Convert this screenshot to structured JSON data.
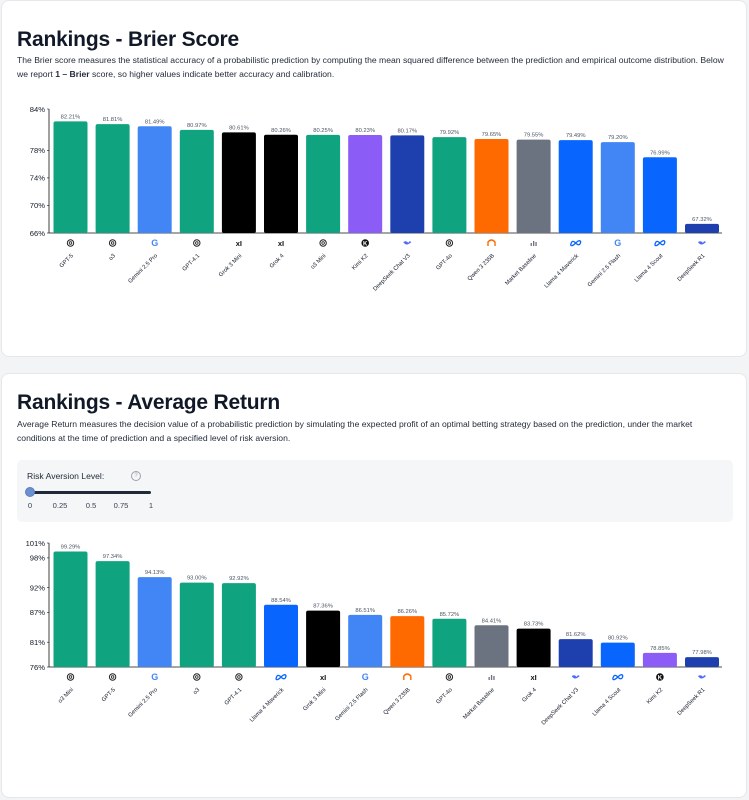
{
  "brier": {
    "title": "Rankings - Brier Score",
    "description_part1": "The Brier score measures the statistical accuracy of a probabilistic prediction by computing the mean squared difference between the prediction and empirical outcome distribution. Below we report ",
    "description_bold": "1 – Brier",
    "description_part2": " score, so higher values indicate better accuracy and calibration."
  },
  "avg_return": {
    "title": "Rankings - Average Return",
    "description": "Average Return measures the decision value of a probabilistic prediction by simulating the expected profit of an optimal betting strategy based on the prediction, under the market conditions at the time of prediction and a specified level of risk aversion.",
    "risk_label": "Risk Aversion Level:",
    "risk_info_icon": "?",
    "risk_value": 0,
    "risk_ticks": [
      "0",
      "0.25",
      "0.5",
      "0.75",
      "1"
    ]
  },
  "colors": {
    "openai": "#10a37f",
    "google": "#4285f4",
    "xai": "#000000",
    "kimi": "#8b5cf6",
    "deepseek": "#1e40af",
    "qwen": "#ff6a00",
    "baseline": "#6b7280",
    "meta": "#0866ff"
  },
  "chart_data": [
    {
      "type": "bar",
      "title": "",
      "ylabel": "",
      "xlabel": "",
      "ylim": [
        66,
        84
      ],
      "yticks": [
        "84%",
        "78%",
        "74%",
        "70%",
        "66%"
      ],
      "ytick_values": [
        84,
        78,
        74,
        70,
        66
      ],
      "categories": [
        "GPT-5",
        "o3",
        "Gemini 2.5 Pro",
        "GPT-4.1",
        "Grok 3 Mini",
        "Grok 4",
        "o3 Mini",
        "Kimi K2",
        "DeepSeek Chat V3",
        "GPT-4o",
        "Qwen 3 235B",
        "Market Baseline",
        "Llama 4 Maverick",
        "Gemini 2.5 Flash",
        "Llama 4 Scout",
        "DeepSeek R1"
      ],
      "values": [
        82.21,
        81.81,
        81.49,
        80.97,
        80.61,
        80.26,
        80.25,
        80.23,
        80.17,
        79.92,
        79.65,
        79.55,
        79.49,
        79.2,
        76.99,
        67.32
      ],
      "labels": [
        "82.21%",
        "81.81%",
        "81.49%",
        "80.97%",
        "80.61%",
        "80.26%",
        "80.25%",
        "80.23%",
        "80.17%",
        "79.92%",
        "79.65%",
        "79.55%",
        "79.49%",
        "79.20%",
        "76.99%",
        "67.32%"
      ],
      "providers": [
        "openai",
        "openai",
        "google",
        "openai",
        "xai",
        "xai",
        "openai",
        "kimi",
        "deepseek",
        "openai",
        "qwen",
        "baseline",
        "meta",
        "google",
        "meta",
        "deepseek"
      ],
      "grid": false,
      "legend": "none"
    },
    {
      "type": "bar",
      "title": "",
      "ylabel": "",
      "xlabel": "",
      "ylim": [
        76,
        101
      ],
      "yticks": [
        "101%",
        "98%",
        "92%",
        "87%",
        "81%",
        "76%"
      ],
      "ytick_values": [
        101,
        98,
        92,
        87,
        81,
        76
      ],
      "categories": [
        "o3 Mini",
        "GPT-5",
        "Gemini 2.5 Pro",
        "o3",
        "GPT-4.1",
        "Llama 4 Maverick",
        "Grok 3 Mini",
        "Gemini 2.5 Flash",
        "Qwen 3 235B",
        "GPT-4o",
        "Market Baseline",
        "Grok 4",
        "DeepSeek Chat V3",
        "Llama 4 Scout",
        "Kimi K2",
        "DeepSeek R1"
      ],
      "values": [
        99.29,
        97.34,
        94.13,
        93.0,
        92.92,
        88.54,
        87.36,
        86.51,
        86.26,
        85.72,
        84.41,
        83.73,
        81.62,
        80.92,
        78.85,
        77.98
      ],
      "labels": [
        "99.29%",
        "97.34%",
        "94.13%",
        "93.00%",
        "92.92%",
        "88.54%",
        "87.36%",
        "86.51%",
        "86.26%",
        "85.72%",
        "84.41%",
        "83.73%",
        "81.62%",
        "80.92%",
        "78.85%",
        "77.98%"
      ],
      "providers": [
        "openai",
        "openai",
        "google",
        "openai",
        "openai",
        "meta",
        "xai",
        "google",
        "qwen",
        "openai",
        "baseline",
        "xai",
        "deepseek",
        "meta",
        "kimi",
        "deepseek"
      ],
      "grid": false,
      "legend": "none"
    }
  ]
}
